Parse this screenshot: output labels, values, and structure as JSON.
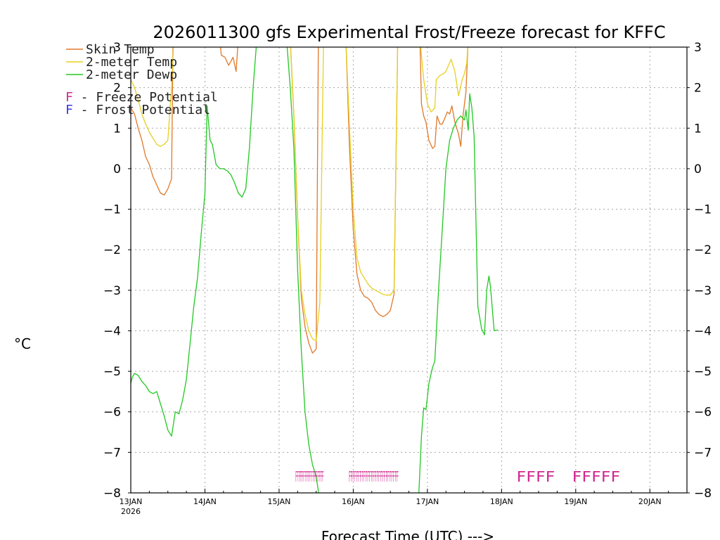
{
  "chart_data": {
    "type": "line",
    "title": "2026011300 gfs Experimental Frost/Freeze forecast for KFFC",
    "xlabel": "Forecast Time (UTC) --->",
    "ylabel": "°C",
    "xlim": [
      0,
      7.5
    ],
    "ylim": [
      -8,
      3
    ],
    "grid": true,
    "x_ticks": [
      {
        "x": 0,
        "label": "13JAN",
        "sublabel": "2026"
      },
      {
        "x": 1,
        "label": "14JAN"
      },
      {
        "x": 2,
        "label": "15JAN"
      },
      {
        "x": 3,
        "label": "16JAN"
      },
      {
        "x": 4,
        "label": "17JAN"
      },
      {
        "x": 5,
        "label": "18JAN"
      },
      {
        "x": 6,
        "label": "19JAN"
      },
      {
        "x": 7,
        "label": "20JAN"
      }
    ],
    "y_ticks": [
      3,
      2,
      1,
      0,
      -1,
      -2,
      -3,
      -4,
      -5,
      -6,
      -7,
      -8
    ],
    "legend": {
      "placement": "top-left",
      "entries": [
        {
          "label": "Skin Temp",
          "color": "#e07828"
        },
        {
          "label": "2-meter Temp",
          "color": "#e6d020"
        },
        {
          "label": "2-meter Dewp",
          "color": "#22c822"
        }
      ],
      "marker_entries": [
        {
          "marker": "F",
          "text": " - Freeze Potential",
          "color": "#d02890"
        },
        {
          "marker": "F",
          "text": " - Frost Potential",
          "color": "#3838e0"
        }
      ]
    },
    "series": [
      {
        "name": "Skin Temp",
        "color": "#e07828",
        "segments": [
          [
            [
              0.0,
              1.5
            ],
            [
              0.05,
              1.35
            ],
            [
              0.1,
              1.0
            ],
            [
              0.15,
              0.7
            ],
            [
              0.2,
              0.3
            ],
            [
              0.25,
              0.1
            ],
            [
              0.3,
              -0.2
            ],
            [
              0.35,
              -0.4
            ],
            [
              0.4,
              -0.6
            ],
            [
              0.45,
              -0.65
            ],
            [
              0.5,
              -0.5
            ],
            [
              0.55,
              -0.25
            ],
            [
              0.57,
              3.2
            ]
          ],
          [
            [
              1.2,
              3.2
            ],
            [
              1.22,
              2.8
            ],
            [
              1.27,
              2.75
            ],
            [
              1.32,
              2.55
            ],
            [
              1.38,
              2.75
            ],
            [
              1.42,
              2.4
            ],
            [
              1.45,
              3.2
            ]
          ],
          [
            [
              2.15,
              3.2
            ],
            [
              2.2,
              1.3
            ],
            [
              2.25,
              -1.2
            ],
            [
              2.3,
              -3.2
            ],
            [
              2.35,
              -3.9
            ],
            [
              2.4,
              -4.3
            ],
            [
              2.45,
              -4.55
            ],
            [
              2.5,
              -4.45
            ],
            [
              2.53,
              3.2
            ]
          ],
          [
            [
              2.9,
              3.2
            ],
            [
              2.95,
              0.5
            ],
            [
              3.0,
              -1.5
            ],
            [
              3.05,
              -2.6
            ],
            [
              3.1,
              -3.0
            ],
            [
              3.15,
              -3.15
            ],
            [
              3.2,
              -3.2
            ],
            [
              3.25,
              -3.3
            ],
            [
              3.3,
              -3.5
            ],
            [
              3.35,
              -3.6
            ],
            [
              3.4,
              -3.65
            ],
            [
              3.45,
              -3.6
            ],
            [
              3.5,
              -3.5
            ],
            [
              3.55,
              -3.1
            ],
            [
              3.6,
              3.2
            ]
          ],
          [
            [
              3.9,
              3.2
            ],
            [
              3.92,
              1.6
            ],
            [
              3.95,
              1.3
            ],
            [
              3.98,
              1.15
            ],
            [
              4.02,
              0.7
            ],
            [
              4.07,
              0.5
            ],
            [
              4.1,
              0.55
            ],
            [
              4.13,
              1.3
            ],
            [
              4.17,
              1.1
            ],
            [
              4.2,
              1.1
            ],
            [
              4.27,
              1.4
            ],
            [
              4.3,
              1.35
            ],
            [
              4.33,
              1.55
            ],
            [
              4.37,
              1.15
            ],
            [
              4.42,
              0.85
            ],
            [
              4.45,
              0.55
            ],
            [
              4.48,
              1.3
            ],
            [
              4.52,
              1.9
            ],
            [
              4.55,
              3.2
            ]
          ]
        ]
      },
      {
        "name": "2-meter Temp",
        "color": "#e6d020",
        "segments": [
          [
            [
              0.0,
              2.2
            ],
            [
              0.05,
              2.0
            ],
            [
              0.1,
              1.7
            ],
            [
              0.15,
              1.35
            ],
            [
              0.2,
              1.1
            ],
            [
              0.25,
              0.9
            ],
            [
              0.3,
              0.75
            ],
            [
              0.35,
              0.6
            ],
            [
              0.4,
              0.55
            ],
            [
              0.45,
              0.6
            ],
            [
              0.5,
              0.7
            ],
            [
              0.55,
              2.0
            ],
            [
              0.58,
              3.2
            ]
          ],
          [
            [
              2.15,
              3.2
            ],
            [
              2.2,
              1.3
            ],
            [
              2.25,
              -1.2
            ],
            [
              2.3,
              -3.0
            ],
            [
              2.35,
              -3.6
            ],
            [
              2.4,
              -4.0
            ],
            [
              2.45,
              -4.2
            ],
            [
              2.5,
              -4.25
            ],
            [
              2.55,
              -3.3
            ],
            [
              2.6,
              3.2
            ]
          ],
          [
            [
              2.9,
              3.2
            ],
            [
              2.95,
              1.0
            ],
            [
              3.0,
              -1.0
            ],
            [
              3.05,
              -2.2
            ],
            [
              3.1,
              -2.55
            ],
            [
              3.15,
              -2.7
            ],
            [
              3.2,
              -2.85
            ],
            [
              3.25,
              -2.95
            ],
            [
              3.3,
              -3.0
            ],
            [
              3.35,
              -3.05
            ],
            [
              3.4,
              -3.1
            ],
            [
              3.45,
              -3.12
            ],
            [
              3.5,
              -3.12
            ],
            [
              3.55,
              -3.0
            ],
            [
              3.6,
              3.2
            ]
          ],
          [
            [
              3.9,
              3.2
            ],
            [
              3.95,
              2.2
            ],
            [
              4.0,
              1.6
            ],
            [
              4.05,
              1.4
            ],
            [
              4.1,
              1.5
            ],
            [
              4.12,
              2.2
            ],
            [
              4.17,
              2.3
            ],
            [
              4.22,
              2.35
            ],
            [
              4.25,
              2.4
            ],
            [
              4.32,
              2.7
            ],
            [
              4.37,
              2.4
            ],
            [
              4.42,
              1.8
            ],
            [
              4.47,
              2.2
            ],
            [
              4.5,
              2.35
            ],
            [
              4.53,
              2.6
            ],
            [
              4.55,
              3.2
            ]
          ]
        ]
      },
      {
        "name": "2-meter Dewp",
        "color": "#22c822",
        "segments": [
          [
            [
              0.0,
              -5.3
            ],
            [
              0.02,
              -5.15
            ],
            [
              0.05,
              -5.05
            ],
            [
              0.1,
              -5.1
            ],
            [
              0.15,
              -5.25
            ],
            [
              0.2,
              -5.35
            ],
            [
              0.25,
              -5.5
            ],
            [
              0.3,
              -5.55
            ],
            [
              0.35,
              -5.5
            ],
            [
              0.4,
              -5.8
            ],
            [
              0.45,
              -6.1
            ],
            [
              0.5,
              -6.45
            ],
            [
              0.55,
              -6.6
            ],
            [
              0.6,
              -6.0
            ],
            [
              0.65,
              -6.05
            ],
            [
              0.7,
              -5.7
            ],
            [
              0.75,
              -5.2
            ],
            [
              0.8,
              -4.3
            ],
            [
              0.85,
              -3.4
            ],
            [
              0.9,
              -2.7
            ],
            [
              0.95,
              -1.6
            ],
            [
              1.0,
              -0.6
            ],
            [
              1.03,
              1.55
            ],
            [
              1.07,
              0.7
            ],
            [
              1.1,
              0.6
            ],
            [
              1.15,
              0.1
            ],
            [
              1.2,
              0.0
            ],
            [
              1.25,
              0.0
            ],
            [
              1.3,
              -0.05
            ],
            [
              1.35,
              -0.15
            ],
            [
              1.4,
              -0.35
            ],
            [
              1.45,
              -0.6
            ],
            [
              1.5,
              -0.7
            ],
            [
              1.55,
              -0.5
            ],
            [
              1.6,
              0.5
            ],
            [
              1.65,
              2.0
            ],
            [
              1.7,
              3.2
            ]
          ],
          [
            [
              2.1,
              3.2
            ],
            [
              2.15,
              2.0
            ],
            [
              2.2,
              0.5
            ],
            [
              2.25,
              -2.5
            ],
            [
              2.3,
              -4.5
            ],
            [
              2.35,
              -6.0
            ],
            [
              2.4,
              -6.8
            ],
            [
              2.45,
              -7.3
            ],
            [
              2.5,
              -7.6
            ],
            [
              2.55,
              -8.2
            ]
          ],
          [
            [
              3.88,
              -8.2
            ],
            [
              3.92,
              -6.6
            ],
            [
              3.95,
              -5.9
            ],
            [
              3.98,
              -5.95
            ],
            [
              4.02,
              -5.3
            ],
            [
              4.07,
              -4.9
            ],
            [
              4.1,
              -4.75
            ],
            [
              4.15,
              -3.0
            ],
            [
              4.2,
              -1.5
            ],
            [
              4.25,
              0.0
            ],
            [
              4.3,
              0.7
            ],
            [
              4.35,
              1.0
            ],
            [
              4.4,
              1.2
            ],
            [
              4.45,
              1.3
            ],
            [
              4.5,
              1.2
            ],
            [
              4.52,
              1.45
            ],
            [
              4.55,
              0.95
            ],
            [
              4.57,
              1.85
            ],
            [
              4.6,
              1.5
            ],
            [
              4.63,
              0.8
            ],
            [
              4.68,
              -3.4
            ],
            [
              4.73,
              -3.95
            ],
            [
              4.77,
              -4.1
            ],
            [
              4.8,
              -3.0
            ],
            [
              4.83,
              -2.65
            ],
            [
              4.85,
              -2.9
            ],
            [
              4.9,
              -4.0
            ],
            [
              4.95,
              -3.98
            ]
          ]
        ]
      }
    ],
    "freeze_markers": [
      {
        "x_start": 2.22,
        "x_end": 2.6,
        "y": -7.55,
        "text": "FFFFFFFFFFFFFFFFFF"
      },
      {
        "x_start": 2.94,
        "x_end": 3.61,
        "y": -7.55,
        "text": "FFFFFFFFFFFFFFFFFFFFFFFFFFF"
      },
      {
        "x_start": 5.2,
        "x_end": 5.72,
        "y": -7.55,
        "text": "FFFF"
      },
      {
        "x_start": 5.95,
        "x_end": 6.6,
        "y": -7.55,
        "text": "FFFFF"
      }
    ]
  }
}
